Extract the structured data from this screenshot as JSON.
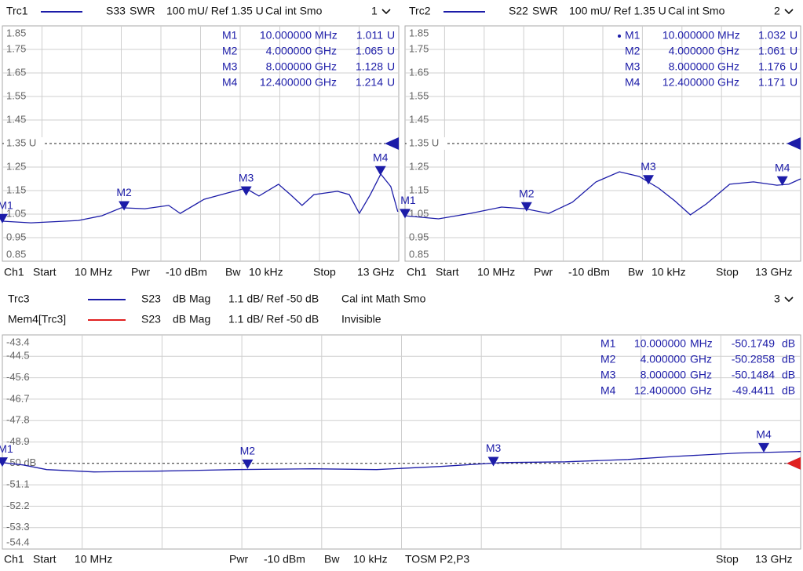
{
  "chart_data": [
    {
      "type": "line",
      "channel_label": "1",
      "series": [
        {
          "name": "Trc1",
          "color": "#1c1ca8",
          "parameter": "S33",
          "format": "SWR",
          "scale": "100 mU/ Ref 1.35 U",
          "status": "Cal int Smo",
          "x": [
            0.01,
            0.95,
            2.5,
            3.27,
            3.91,
            4.68,
            5.46,
            5.84,
            6.62,
            7.39,
            7.98,
            8.42,
            9.06,
            9.45,
            9.83,
            10.22,
            10.99,
            11.38,
            11.71,
            12.07,
            12.41,
            12.74,
            12.97
          ],
          "values": [
            1.02,
            1.013,
            1.023,
            1.043,
            1.077,
            1.073,
            1.087,
            1.053,
            1.113,
            1.14,
            1.16,
            1.127,
            1.177,
            1.133,
            1.087,
            1.133,
            1.147,
            1.133,
            1.053,
            1.133,
            1.22,
            1.167,
            1.06
          ]
        }
      ],
      "xlim": [
        0.01,
        13
      ],
      "x_divisions": 10,
      "ylim": [
        0.85,
        1.85
      ],
      "yticks": [
        1.85,
        1.75,
        1.65,
        1.55,
        1.45,
        {
          "value": 1.35,
          "label": "1.35 U"
        },
        1.25,
        1.15,
        1.05,
        0.95,
        0.85
      ],
      "grid": true,
      "markers": {
        "names": [
          "M1",
          "M2",
          "M3",
          "M4"
        ],
        "x": [
          0.01,
          4,
          8,
          12.4
        ],
        "x_labels": [
          "10.000000",
          "4.000000",
          "8.000000",
          "12.400000"
        ],
        "x_units": [
          "MHz",
          "GHz",
          "GHz",
          "GHz"
        ],
        "values": [
          1.011,
          1.065,
          1.128,
          1.214
        ],
        "unit": "U"
      },
      "footer": [
        "Ch1",
        "Start",
        "10 MHz",
        "Pwr",
        "-10 dBm",
        "Bw",
        "10 kHz",
        "Stop",
        "13 GHz"
      ]
    },
    {
      "type": "line",
      "channel_label": "2",
      "series": [
        {
          "name": "Trc2",
          "color": "#1c1ca8",
          "parameter": "S22",
          "format": "SWR",
          "scale": "100 mU/ Ref 1.35 U",
          "status": "Cal int Smo",
          "x": [
            0.01,
            1.11,
            2.15,
            3.18,
            3.95,
            4.73,
            5.5,
            6.28,
            7.05,
            7.7,
            8.34,
            8.86,
            9.38,
            9.9,
            10.67,
            11.45,
            12.22,
            12.61,
            13
          ],
          "values": [
            1.043,
            1.03,
            1.053,
            1.08,
            1.073,
            1.053,
            1.1,
            1.187,
            1.23,
            1.21,
            1.16,
            1.107,
            1.047,
            1.093,
            1.177,
            1.187,
            1.173,
            1.177,
            1.2
          ]
        }
      ],
      "xlim": [
        0.01,
        13
      ],
      "x_divisions": 10,
      "ylim": [
        0.85,
        1.85
      ],
      "yticks": [
        1.85,
        1.75,
        1.65,
        1.55,
        1.45,
        {
          "value": 1.35,
          "label": "1.35 U"
        },
        1.25,
        1.15,
        1.05,
        0.95,
        0.85
      ],
      "grid": true,
      "markers": {
        "names": [
          "M1",
          "M2",
          "M3",
          "M4"
        ],
        "x": [
          0.01,
          4,
          8,
          12.4
        ],
        "x_labels": [
          "10.000000",
          "4.000000",
          "8.000000",
          "12.400000"
        ],
        "x_units": [
          "MHz",
          "GHz",
          "GHz",
          "GHz"
        ],
        "values": [
          1.032,
          1.061,
          1.176,
          1.171
        ],
        "unit": "U",
        "active_marker": 0
      },
      "footer": [
        "Ch1",
        "Start",
        "10 MHz",
        "Pwr",
        "-10 dBm",
        "Bw",
        "10 kHz",
        "Stop",
        "13 GHz"
      ]
    },
    {
      "type": "line",
      "channel_label": "3",
      "series": [
        {
          "name": "Trc3",
          "color": "#1c1ca8",
          "parameter": "S23",
          "format": "dB Mag",
          "scale": "1.1 dB/ Ref -50 dB",
          "status": "Cal int Math Smo",
          "x": [
            0.01,
            0.35,
            0.73,
            1.5,
            2.52,
            3.8,
            5.07,
            6.1,
            7.12,
            8.14,
            9.17,
            10.19,
            10.96,
            11.98,
            13
          ],
          "values": [
            -49.96,
            -50.08,
            -50.32,
            -50.44,
            -50.4,
            -50.32,
            -50.28,
            -50.32,
            -50.16,
            -49.96,
            -49.92,
            -49.8,
            -49.64,
            -49.47,
            -49.39
          ]
        },
        {
          "name": "Mem4[Trc3]",
          "color": "#e02020",
          "parameter": "S23",
          "format": "dB Mag",
          "scale": "1.1 dB/ Ref -50 dB",
          "status": "Invisible"
        }
      ],
      "xlim": [
        0.01,
        13
      ],
      "x_divisions": 10,
      "ylim": [
        -54.4,
        -43.4
      ],
      "yticks": [
        -43.4,
        -44.5,
        -45.6,
        -46.7,
        -47.8,
        -48.9,
        {
          "value": -50,
          "label": "-50 dB"
        },
        -51.1,
        -52.2,
        -53.3,
        -54.4
      ],
      "grid": true,
      "markers": {
        "names": [
          "M1",
          "M2",
          "M3",
          "M4"
        ],
        "x": [
          0.01,
          4,
          8,
          12.4
        ],
        "x_labels": [
          "10.000000",
          "4.000000",
          "8.000000",
          "12.400000"
        ],
        "x_units": [
          "MHz",
          "GHz",
          "GHz",
          "GHz"
        ],
        "values": [
          -50.1749,
          -50.2858,
          -50.1484,
          -49.4411
        ],
        "unit": "dB"
      },
      "footer": [
        "Ch1",
        "Start",
        "10 MHz",
        "Pwr",
        "-10 dBm",
        "Bw",
        "10 kHz",
        "TOSM P2,P3",
        "Stop",
        "13 GHz"
      ]
    }
  ]
}
